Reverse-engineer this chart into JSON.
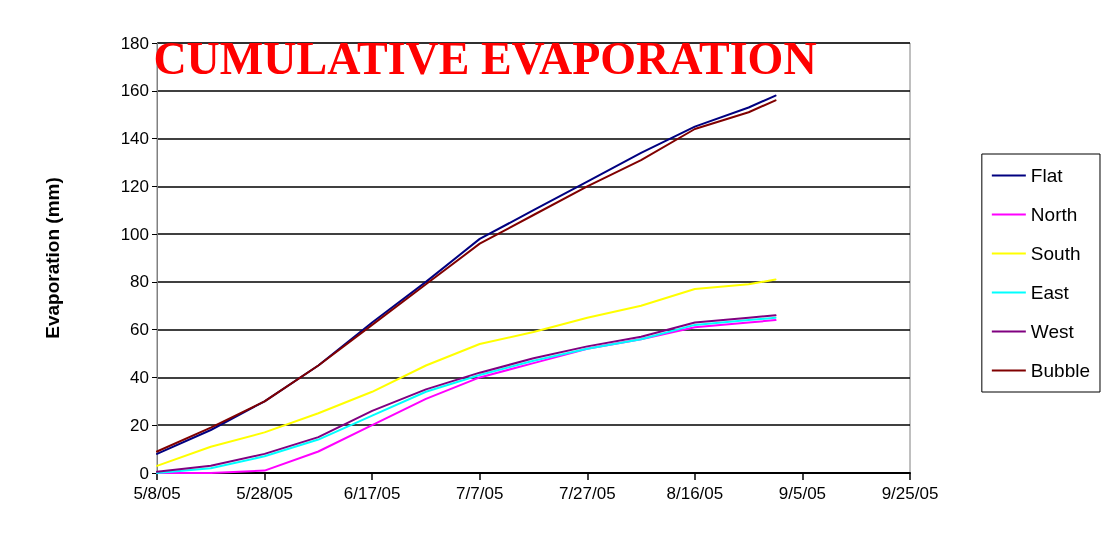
{
  "chart_data": {
    "type": "line",
    "title": "CUMULATIVE EVAPORATION",
    "ylabel": "Evaporation (mm)",
    "x": [
      "2005-05-08",
      "2005-05-18",
      "2005-05-28",
      "2005-06-07",
      "2005-06-17",
      "2005-06-27",
      "2005-07-07",
      "2005-07-17",
      "2005-07-27",
      "2005-08-06",
      "2005-08-16",
      "2005-08-26",
      "2005-08-31"
    ],
    "series": [
      {
        "name": "Flat",
        "color": "#000080",
        "values": [
          8,
          18,
          30,
          45,
          63,
          80,
          98,
          110,
          122,
          134,
          145,
          153,
          158
        ]
      },
      {
        "name": "North",
        "color": "#ff00ff",
        "values": [
          0,
          0,
          1,
          9,
          20,
          31,
          40,
          46,
          52,
          56,
          61,
          63,
          64
        ]
      },
      {
        "name": "South",
        "color": "#ffff00",
        "values": [
          3,
          11,
          17,
          25,
          34,
          45,
          54,
          59,
          65,
          70,
          77,
          79,
          81
        ]
      },
      {
        "name": "East",
        "color": "#00ffff",
        "values": [
          0,
          2,
          7,
          14,
          24,
          34,
          41,
          47,
          52,
          56,
          62,
          64,
          65
        ]
      },
      {
        "name": "West",
        "color": "#800080",
        "values": [
          0.5,
          3,
          8,
          15,
          26,
          35,
          42,
          48,
          53,
          57,
          63,
          65,
          66
        ]
      },
      {
        "name": "Bubble",
        "color": "#800000",
        "values": [
          9,
          19,
          30,
          45,
          62,
          79,
          96,
          108,
          120,
          131,
          144,
          151,
          156
        ]
      }
    ],
    "xlim": [
      "2005-05-08",
      "2005-09-25"
    ],
    "xticks": [
      {
        "value": "2005-05-08",
        "label": "5/8/05"
      },
      {
        "value": "2005-05-28",
        "label": "5/28/05"
      },
      {
        "value": "2005-06-17",
        "label": "6/17/05"
      },
      {
        "value": "2005-07-07",
        "label": "7/7/05"
      },
      {
        "value": "2005-07-27",
        "label": "7/27/05"
      },
      {
        "value": "2005-08-16",
        "label": "8/16/05"
      },
      {
        "value": "2005-09-05",
        "label": "9/5/05"
      },
      {
        "value": "2005-09-25",
        "label": "9/25/05"
      }
    ],
    "ylim": [
      0,
      180
    ],
    "yticks": [
      0,
      20,
      40,
      60,
      80,
      100,
      120,
      140,
      160,
      180
    ],
    "grid": "y",
    "legend": "right",
    "marker": "none",
    "line_style": "solid"
  }
}
